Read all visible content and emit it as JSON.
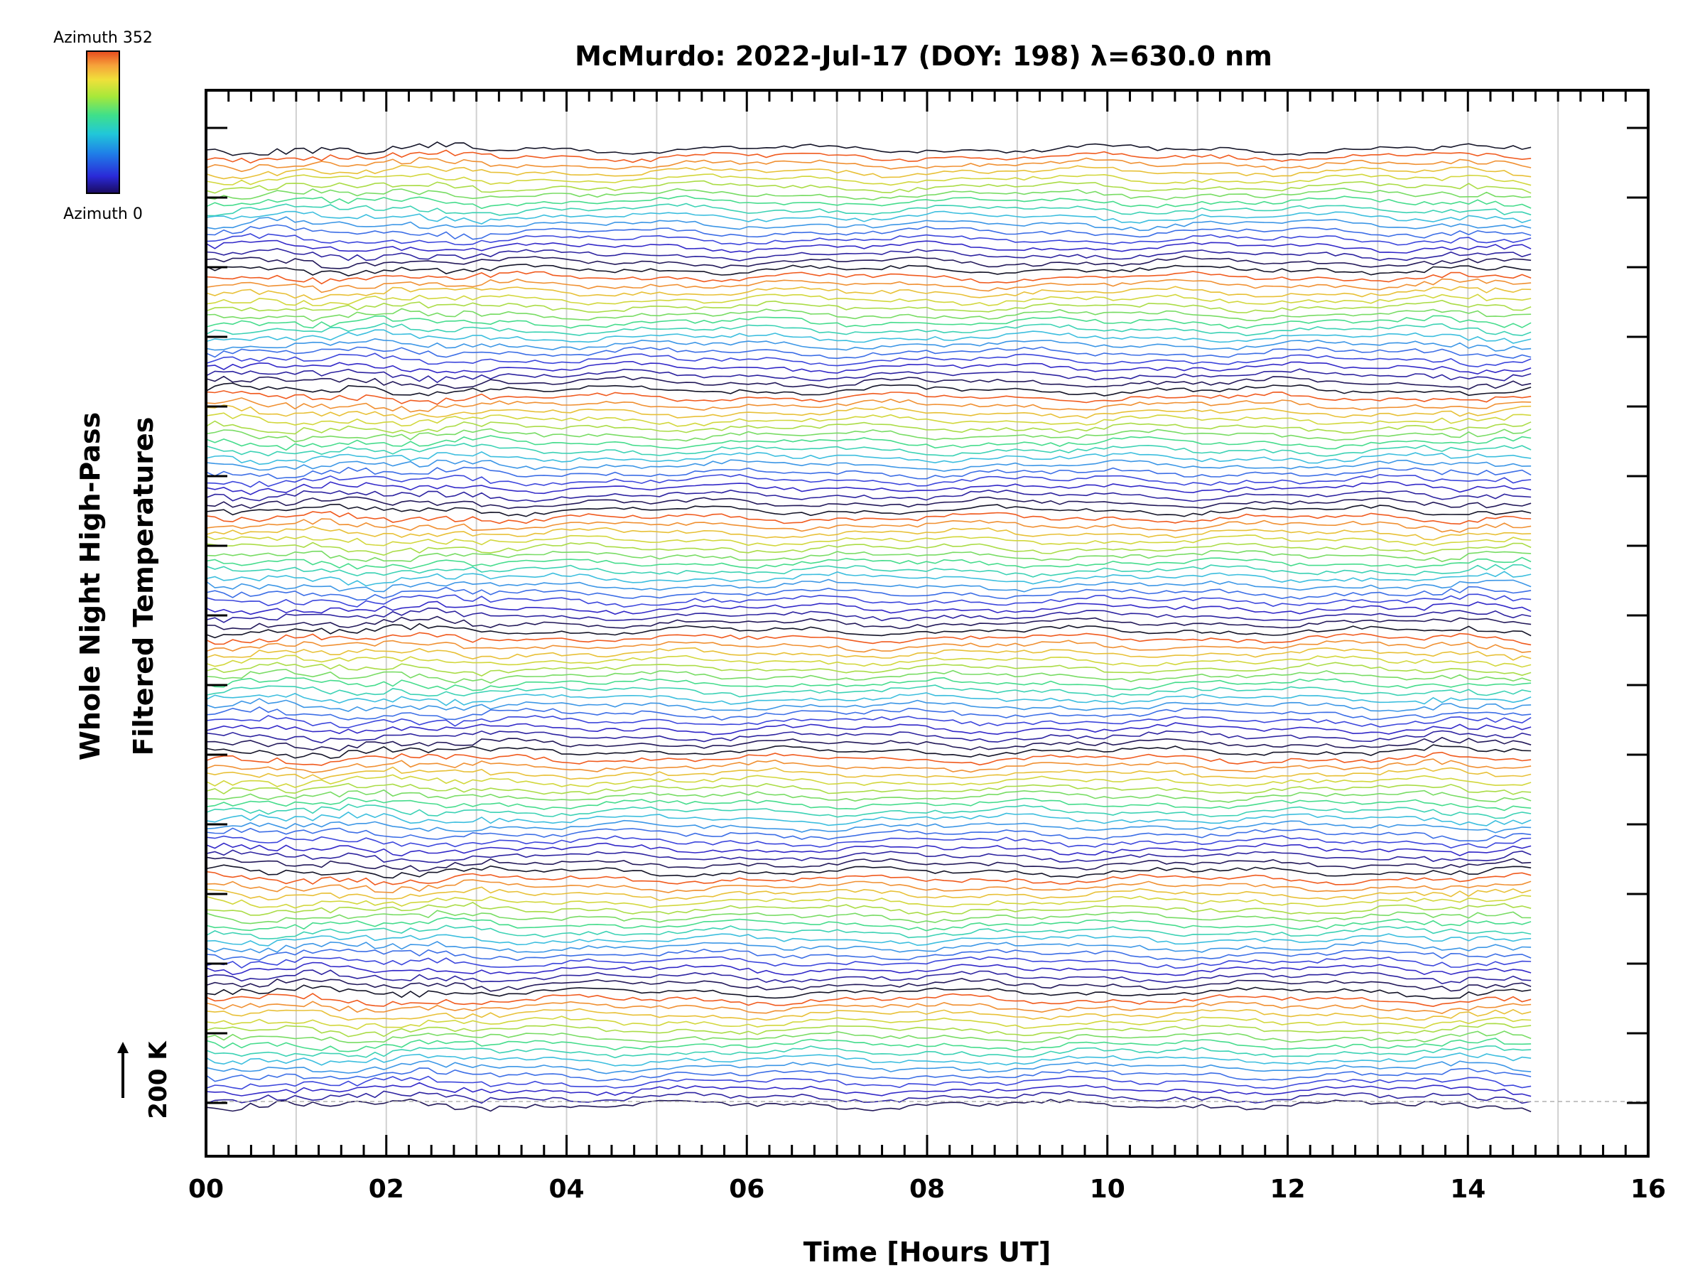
{
  "chart_data": {
    "type": "line",
    "title": "McMurdo: 2022-Jul-17 (DOY: 198) λ=630.0 nm",
    "xlabel": "Time [Hours UT]",
    "ylabel_line1": "Whole Night High-Pass",
    "ylabel_line2": "Filtered Temperatures",
    "scale_marker_label": "200 K",
    "xlim": [
      0,
      16
    ],
    "x_tick_labels": [
      "00",
      "02",
      "04",
      "06",
      "08",
      "10",
      "12",
      "14",
      "16"
    ],
    "x_data_range": [
      0.0,
      14.7
    ],
    "grid": "vertical lines every 1 hour",
    "colorbar": {
      "top_label": "Azimuth 352",
      "bottom_label": "Azimuth 0",
      "colormap": [
        "#1a0a5e",
        "#2a2ad8",
        "#1f7fe8",
        "#21c8d8",
        "#3fe08a",
        "#a6e83a",
        "#f0e03a",
        "#f6a23a",
        "#e84a1e"
      ]
    },
    "series_count": 128,
    "series_color_cycle": [
      "#141428",
      "#f05a1e",
      "#f09032",
      "#e8c037",
      "#d2d73c",
      "#aadc46",
      "#78dc64",
      "#46dc8c",
      "#3cd2b4",
      "#3cbede",
      "#3c96e6",
      "#3c6ee6",
      "#3c46dc",
      "#3228c8",
      "#2d23a0",
      "#23195a"
    ],
    "series_groups": 8,
    "series_per_group": 16
  }
}
